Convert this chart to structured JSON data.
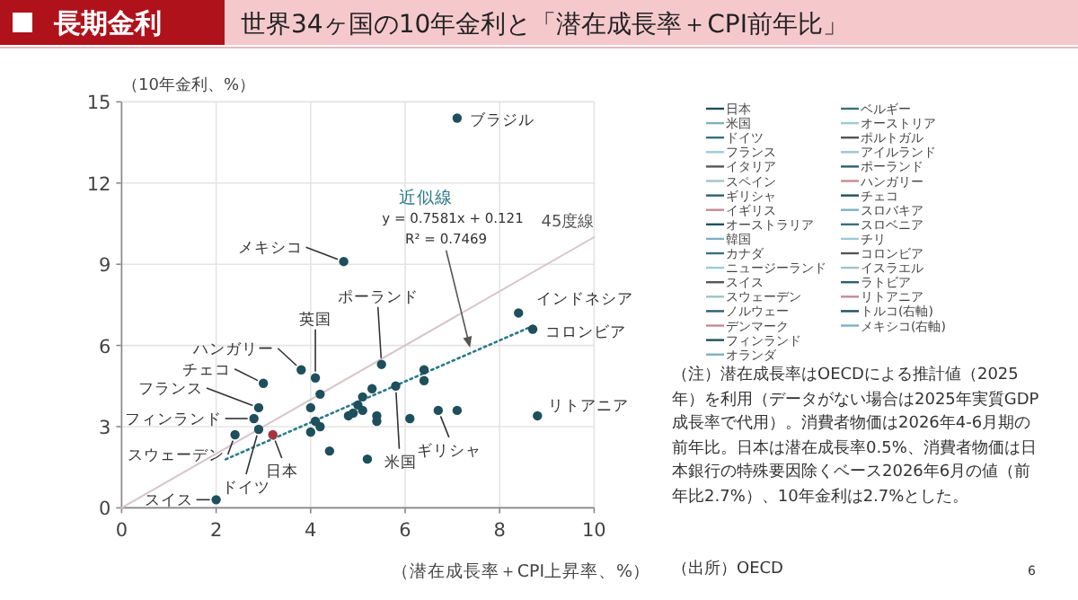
{
  "chart_data": [
    {
      "type": "scatter",
      "title": "長期金利",
      "subtitle": "世界34ヶ国の10年金利と「潜在成長率＋CPI前年比」",
      "xlabel": "（潜在成長率＋CPI上昇率、%）",
      "ylabel": "（10年金利、%）",
      "xlim": [
        0,
        10
      ],
      "xticks": [
        0,
        2,
        4,
        6,
        8,
        10
      ],
      "ylim": [
        0,
        15
      ],
      "yticks": [
        0,
        3,
        6,
        9,
        12,
        15
      ],
      "grid": true,
      "marker": "circle",
      "series": [
        {
          "type": "scatter",
          "x": [
            7.1,
            4.7,
            3.8,
            4.1,
            3.0,
            2.9,
            2.8,
            2.9,
            2.4,
            3.2,
            2.0,
            5.5,
            8.4,
            8.7,
            5.8,
            6.7,
            8.8,
            4.2,
            4.0,
            4.1,
            4.2,
            4.0,
            4.4,
            4.8,
            6.4,
            6.4,
            5.2,
            5.3,
            5.1,
            5.0,
            5.1,
            4.9,
            5.4,
            5.4,
            6.1,
            7.1
          ],
          "values": [
            14.4,
            9.1,
            5.1,
            4.8,
            4.6,
            3.7,
            3.3,
            2.9,
            2.7,
            2.7,
            0.3,
            5.3,
            7.2,
            6.6,
            4.5,
            3.6,
            3.4,
            4.2,
            3.7,
            3.2,
            3.0,
            2.8,
            2.1,
            3.4,
            5.1,
            4.7,
            1.8,
            4.4,
            4.1,
            3.8,
            3.6,
            3.5,
            3.4,
            3.2,
            3.3,
            3.6
          ],
          "colors": [
            "#1f4f5c",
            "#1f4f5c",
            "#1f4f5c",
            "#1f4f5c",
            "#1f4f5c",
            "#1f4f5c",
            "#1f4f5c",
            "#1f4f5c",
            "#1f4f5c",
            "#a8323e",
            "#1f4f5c",
            "#1f4f5c",
            "#1f4f5c",
            "#1f4f5c",
            "#1f4f5c",
            "#1f4f5c",
            "#1f4f5c",
            "#1f4f5c",
            "#1f4f5c",
            "#1f4f5c",
            "#1f4f5c",
            "#1f4f5c",
            "#1f4f5c",
            "#1f4f5c",
            "#1f4f5c",
            "#1f4f5c",
            "#1f4f5c",
            "#1f4f5c",
            "#1f4f5c",
            "#1f4f5c",
            "#1f4f5c",
            "#1f4f5c",
            "#1f4f5c",
            "#1f4f5c",
            "#1f4f5c",
            "#1f4f5c"
          ]
        },
        {
          "type": "line",
          "name": "45度線",
          "color": "#d9c4c8",
          "line_style": "solid",
          "marker": "none",
          "x": [
            0,
            10
          ],
          "values": [
            0,
            10
          ]
        },
        {
          "type": "line",
          "name": "近似線",
          "color": "#2b7a8c",
          "line_style": "dotted",
          "marker": "none",
          "x": [
            2.2,
            8.7
          ],
          "values": [
            1.79,
            6.72
          ]
        }
      ],
      "annotations": [
        {
          "text": "ブラジル",
          "x": 7.1,
          "y": 14.4
        },
        {
          "text": "メキシコ",
          "x": 4.7,
          "y": 9.1
        },
        {
          "text": "ハンガリー",
          "x": 3.8,
          "y": 5.1
        },
        {
          "text": "英国",
          "x": 4.1,
          "y": 4.8
        },
        {
          "text": "チェコ",
          "x": 3.0,
          "y": 4.6
        },
        {
          "text": "フランス",
          "x": 2.9,
          "y": 3.7
        },
        {
          "text": "フィンランド",
          "x": 2.8,
          "y": 3.3
        },
        {
          "text": "ドイツ",
          "x": 2.9,
          "y": 2.9
        },
        {
          "text": "スウェーデン",
          "x": 2.4,
          "y": 2.7
        },
        {
          "text": "日本",
          "x": 3.2,
          "y": 2.7
        },
        {
          "text": "スイス",
          "x": 2.0,
          "y": 0.3
        },
        {
          "text": "ポーランド",
          "x": 5.5,
          "y": 5.3
        },
        {
          "text": "インドネシア",
          "x": 8.4,
          "y": 7.2
        },
        {
          "text": "コロンビア",
          "x": 8.7,
          "y": 6.6
        },
        {
          "text": "米国",
          "x": 5.8,
          "y": 4.5
        },
        {
          "text": "ギリシャ",
          "x": 6.7,
          "y": 3.6
        },
        {
          "text": "リトアニア",
          "x": 8.8,
          "y": 3.4
        },
        "y = 0.7581x + 0.121",
        {
          "text": "R² = 0.7469",
          "x": 7.4,
          "y": 5.73
        },
        "（注）潜在成長率はOECDによる推計値（2025年）を利用（データがない場合は2025年実質GDP成長率で代用）。消費者物価は2026年4-6月期の前年比。日本は潜在成長率0.5%、消費者物価は日本銀行の特殊要因除くベース2026年6月の値（前年比2.7%）、10年金利は2.7%とした。",
        "（出所）OECD",
        "6"
      ]
    },
    {
      "type": "other",
      "annotations": [
        "日本",
        "米国",
        "ドイツ",
        "フランス",
        "イタリア",
        "スペイン",
        "ギリシャ",
        "イギリス",
        "オーストラリア",
        "韓国",
        "カナダ",
        "ニュージーランド",
        "スイス",
        "スウェーデン",
        "ノルウェー",
        "デンマーク",
        "フィンランド",
        "オランダ",
        "ベルギー",
        "オーストリア",
        "ポルトガル",
        "アイルランド",
        "ポーランド",
        "ハンガリー",
        "チェコ",
        "スロバキア",
        "スロベニア",
        "チリ",
        "コロンビア",
        "イスラエル",
        "ラトビア",
        "リトアニア",
        "トルコ(右軸)",
        "メキシコ(右軸)"
      ]
    }
  ]
}
